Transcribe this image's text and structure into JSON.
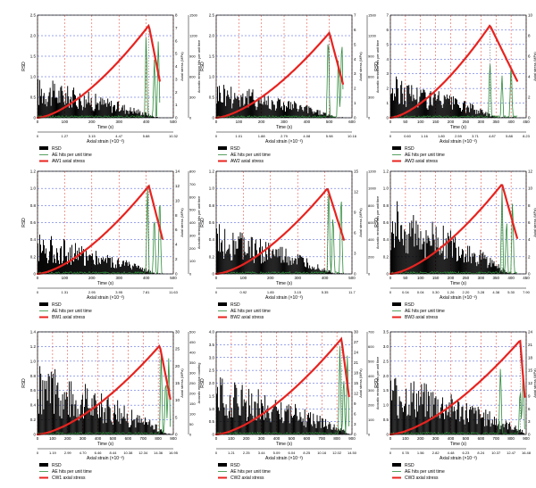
{
  "chart_data": [
    {
      "type": "line",
      "ylabel_left": "RSD",
      "ylabel_right1": "Axial stress (MPa)",
      "ylabel_right2": "Acoustic emission hits per unit time",
      "xlabel_top": "Time (s)",
      "xlabel_bottom": "Axial strain (×10⁻³)",
      "left_ticks": [
        "0",
        "0.5",
        "1.0",
        "1.5",
        "2.0",
        "2.5"
      ],
      "stress_ticks": [
        "0",
        "1",
        "2",
        "3",
        "4",
        "5",
        "6",
        "7",
        "8"
      ],
      "ae_ticks": [
        "0",
        "300",
        "600",
        "900",
        "1200",
        "1500"
      ],
      "time_ticks": [
        "0",
        "100",
        "200",
        "300",
        "400",
        "500"
      ],
      "strain_ticks": [
        "0",
        "1.27",
        "3.15",
        "4.47",
        "5.88",
        "10.32"
      ],
      "legend": [
        "RSD",
        "AE hits per unit time",
        "AW1 axial stress"
      ],
      "time_max": 500,
      "rsd_max": 2.5,
      "stress_max": 8,
      "ae_max": 1500,
      "peak_time": 410,
      "end_time": 450,
      "peak_stress": 7.2,
      "rsd_peak": 1.0,
      "ae_peak": 1280,
      "ae_times": [
        400,
        430,
        445
      ]
    },
    {
      "type": "line",
      "ylabel_left": "RSD",
      "ylabel_right1": "Axial stress (MPa)",
      "ylabel_right2": "Acoustic emission hits per unit time",
      "xlabel_top": "Time (s)",
      "xlabel_bottom": "Axial strain (×10⁻³)",
      "left_ticks": [
        "0",
        "0.5",
        "1.0",
        "1.5",
        "2.0",
        "2.5"
      ],
      "stress_ticks": [
        "0",
        "1",
        "2",
        "3",
        "4",
        "5",
        "6",
        "7"
      ],
      "ae_ticks": [
        "0",
        "300",
        "600",
        "900",
        "1200",
        "1500"
      ],
      "time_ticks": [
        "0",
        "100",
        "200",
        "300",
        "400",
        "500",
        "600"
      ],
      "strain_ticks": [
        "0",
        "1.01",
        "1.88",
        "2.79",
        "4.08",
        "5.98",
        "10.16"
      ],
      "legend": [
        "RSD",
        "AE hits per unit time",
        "AW2 axial stress"
      ],
      "time_max": 600,
      "rsd_max": 2.5,
      "stress_max": 7,
      "ae_max": 1500,
      "peak_time": 500,
      "end_time": 560,
      "peak_stress": 5.8,
      "rsd_peak": 0.95,
      "ae_peak": 1350,
      "ae_times": [
        495,
        540,
        555
      ]
    },
    {
      "type": "line",
      "ylabel_left": "RSD",
      "ylabel_right1": "Axial stress (MPa)",
      "ylabel_right2": "Acoustic emission hits per unit time",
      "xlabel_top": "Time (s)",
      "xlabel_bottom": "Axial strain (×10⁻³)",
      "left_ticks": [
        "0",
        "1",
        "2",
        "3",
        "4",
        "5",
        "6",
        "7"
      ],
      "stress_ticks": [
        "0",
        "2",
        "4",
        "6",
        "8",
        "10"
      ],
      "ae_ticks": [
        "0",
        "300",
        "600",
        "900",
        "1200",
        "1500"
      ],
      "time_ticks": [
        "0",
        "50",
        "100",
        "150",
        "200",
        "250",
        "300",
        "350",
        "400",
        "450"
      ],
      "strain_ticks": [
        "0",
        "0.60",
        "1.16",
        "1.80",
        "2.59",
        "3.71",
        "4.87",
        "5.88",
        "8.23"
      ],
      "legend": [
        "RSD",
        "AE hits per unit time",
        "AW3 axial stress"
      ],
      "time_max": 450,
      "rsd_max": 7,
      "stress_max": 10,
      "ae_max": 1500,
      "peak_time": 330,
      "end_time": 420,
      "peak_stress": 9.0,
      "rsd_peak": 3.0,
      "ae_peak": 900,
      "ae_times": [
        330,
        370,
        400
      ]
    },
    {
      "type": "line",
      "ylabel_left": "RSD",
      "ylabel_right1": "Axial stress (MPa)",
      "ylabel_right2": "Acoustic emission hits per unit time",
      "xlabel_top": "Time (s)",
      "xlabel_bottom": "Axial strain (×10⁻³)",
      "left_ticks": [
        "0",
        "0.2",
        "0.4",
        "0.6",
        "0.8",
        "1.0",
        "1.2"
      ],
      "stress_ticks": [
        "0",
        "2",
        "4",
        "6",
        "8",
        "10",
        "12",
        "14"
      ],
      "ae_ticks": [
        "0",
        "100",
        "200",
        "300",
        "400",
        "500",
        "600",
        "700",
        "800"
      ],
      "time_ticks": [
        "0",
        "100",
        "200",
        "300",
        "400",
        "500"
      ],
      "strain_ticks": [
        "0",
        "1.31",
        "2.95",
        "3.95",
        "7.81",
        "11.63"
      ],
      "legend": [
        "RSD",
        "AE hits per unit time",
        "BW1 axial stress"
      ],
      "time_max": 500,
      "rsd_max": 1.2,
      "stress_max": 14,
      "ae_max": 800,
      "peak_time": 410,
      "end_time": 460,
      "peak_stress": 12.0,
      "rsd_peak": 0.5,
      "ae_peak": 720,
      "ae_times": [
        405,
        430,
        450
      ]
    },
    {
      "type": "line",
      "ylabel_left": "RSD",
      "ylabel_right1": "Axial stress (MPa)",
      "ylabel_right2": "Acoustic emission hits per unit time",
      "xlabel_top": "Time (s)",
      "xlabel_bottom": "Axial strain (×10⁻³)",
      "left_ticks": [
        "0",
        "0.2",
        "0.4",
        "0.6",
        "0.8",
        "1.0",
        "1.2"
      ],
      "stress_ticks": [
        "0",
        "3",
        "6",
        "9",
        "12",
        "15"
      ],
      "ae_ticks": [
        "0",
        "200",
        "400",
        "600",
        "800",
        "1000",
        "1200"
      ],
      "time_ticks": [
        "0",
        "100",
        "200",
        "300",
        "400",
        "500"
      ],
      "strain_ticks": [
        "0",
        "0.92",
        "1.85",
        "3.15",
        "5.35",
        "11.7"
      ],
      "legend": [
        "RSD",
        "AE hits per unit time",
        "BW2 axial stress"
      ],
      "time_max": 500,
      "rsd_max": 1.2,
      "stress_max": 15,
      "ae_max": 1200,
      "peak_time": 410,
      "end_time": 470,
      "peak_stress": 12.5,
      "rsd_peak": 0.6,
      "ae_peak": 1100,
      "ae_times": [
        415,
        430,
        460
      ]
    },
    {
      "type": "line",
      "ylabel_left": "RSD",
      "ylabel_right1": "Axial stress (MPa)",
      "ylabel_right2": "Acoustic emission hits per unit time",
      "xlabel_top": "Time (s)",
      "xlabel_bottom": "Axial strain (×10⁻³)",
      "left_ticks": [
        "0",
        "0.2",
        "0.4",
        "0.6",
        "0.8",
        "1.0",
        "1.2"
      ],
      "stress_ticks": [
        "0",
        "2",
        "4",
        "6",
        "8",
        "10",
        "12"
      ],
      "ae_ticks": [
        "0",
        "200",
        "400",
        "600",
        "800",
        "1000",
        "1200"
      ],
      "time_ticks": [
        "0",
        "50",
        "100",
        "150",
        "200",
        "250",
        "300",
        "350",
        "400",
        "450"
      ],
      "strain_ticks": [
        "0",
        "0.04",
        "0.04",
        "0.30",
        "1.26",
        "2.20",
        "3.28",
        "4.38",
        "5.30",
        "7.90"
      ],
      "legend": [
        "RSD",
        "AE hits per unit time",
        "BW3 axial stress"
      ],
      "time_max": 450,
      "rsd_max": 1.2,
      "stress_max": 12,
      "ae_max": 1200,
      "peak_time": 370,
      "end_time": 420,
      "peak_stress": 10.5,
      "rsd_peak": 0.9,
      "ae_peak": 1000,
      "ae_times": [
        370,
        385,
        405
      ]
    },
    {
      "type": "line",
      "ylabel_left": "RSD",
      "ylabel_right1": "Axial stress (MPa)",
      "ylabel_right2": "Acoustic emission counting",
      "xlabel_top": "Time (s)",
      "xlabel_bottom": "Axial strain (×10⁻³)",
      "left_ticks": [
        "0",
        "0.2",
        "0.4",
        "0.6",
        "0.8",
        "1.0",
        "1.2",
        "1.4"
      ],
      "stress_ticks": [
        "0",
        "5",
        "10",
        "15",
        "20",
        "25",
        "30"
      ],
      "ae_ticks": [
        "0",
        "50",
        "100",
        "150",
        "200",
        "250",
        "300",
        "350",
        "400",
        "450",
        "500"
      ],
      "time_ticks": [
        "0",
        "100",
        "200",
        "300",
        "400",
        "500",
        "600",
        "700",
        "800",
        "900"
      ],
      "strain_ticks": [
        "0",
        "1.19",
        "2.99",
        "4.70",
        "6.46",
        "8.44",
        "10.38",
        "12.34",
        "14.36",
        "16.95"
      ],
      "legend": [
        "RSD",
        "AE hits per unit time",
        "CW1 axial stress"
      ],
      "time_max": 900,
      "rsd_max": 1.4,
      "stress_max": 30,
      "ae_max": 500,
      "peak_time": 810,
      "end_time": 880,
      "peak_stress": 26.0,
      "rsd_peak": 1.0,
      "ae_peak": 430,
      "ae_times": [
        820,
        850,
        870
      ]
    },
    {
      "type": "line",
      "ylabel_left": "RSD",
      "ylabel_right1": "Axial stress (MPa)",
      "ylabel_right2": "Acoustic emission hits per unit time",
      "xlabel_top": "Time (s)",
      "xlabel_bottom": "Axial strain (×10⁻³)",
      "left_ticks": [
        "0",
        "0.5",
        "1.0",
        "1.5",
        "2.0",
        "2.5",
        "3.0",
        "3.5",
        "4.0"
      ],
      "stress_ticks": [
        "0",
        "3",
        "6",
        "9",
        "12",
        "15",
        "18",
        "21",
        "24",
        "27",
        "30"
      ],
      "ae_ticks": [
        "0",
        "100",
        "200",
        "300",
        "400",
        "500",
        "600",
        "700"
      ],
      "time_ticks": [
        "0",
        "100",
        "200",
        "300",
        "400",
        "500",
        "600",
        "700",
        "800",
        "900"
      ],
      "strain_ticks": [
        "0",
        "1.21",
        "2.25",
        "3.44",
        "5.09",
        "6.04",
        "8.25",
        "10.16",
        "12.02",
        "14.50"
      ],
      "legend": [
        "RSD",
        "AE hits per unit time",
        "CW2 axial stress"
      ],
      "time_max": 900,
      "rsd_max": 4.0,
      "stress_max": 30,
      "ae_max": 700,
      "peak_time": 830,
      "end_time": 880,
      "peak_stress": 28.0,
      "rsd_peak": 2.4,
      "ae_peak": 620,
      "ae_times": [
        820,
        845,
        870
      ]
    },
    {
      "type": "line",
      "ylabel_left": "RSD",
      "ylabel_right1": "Axial stress (MPa)",
      "ylabel_right2": "Acoustic emission hits per unit time",
      "xlabel_top": "Time (s)",
      "xlabel_bottom": "Axial strain (×10⁻³)",
      "left_ticks": [
        "0",
        "0.5",
        "1.0",
        "1.5",
        "2.0",
        "2.5",
        "3.0",
        "3.5"
      ],
      "stress_ticks": [
        "0",
        "3",
        "6",
        "9",
        "12",
        "15",
        "18",
        "21",
        "24"
      ],
      "ae_ticks": [
        "0",
        "100",
        "200",
        "300",
        "400",
        "500",
        "600",
        "700"
      ],
      "time_ticks": [
        "0",
        "100",
        "200",
        "300",
        "400",
        "500",
        "600",
        "700",
        "800",
        "900"
      ],
      "strain_ticks": [
        "0",
        "0.78",
        "1.56",
        "2.82",
        "4.48",
        "6.23",
        "8.24",
        "10.37",
        "12.47",
        "16.48"
      ],
      "legend": [
        "RSD",
        "AE hits per unit time",
        "CW3 axial stress"
      ],
      "time_max": 900,
      "rsd_max": 3.5,
      "stress_max": 24,
      "ae_max": 700,
      "peak_time": 860,
      "end_time": 890,
      "peak_stress": 22.0,
      "rsd_peak": 2.2,
      "ae_peak": 500,
      "ae_times": [
        730,
        860,
        880
      ]
    }
  ],
  "colors": {
    "rsd": "#000000",
    "ae": "#2e8b3a",
    "stress": "#e8231f",
    "grid_v": "#e0392b",
    "grid_h": "#3a4fd8"
  }
}
